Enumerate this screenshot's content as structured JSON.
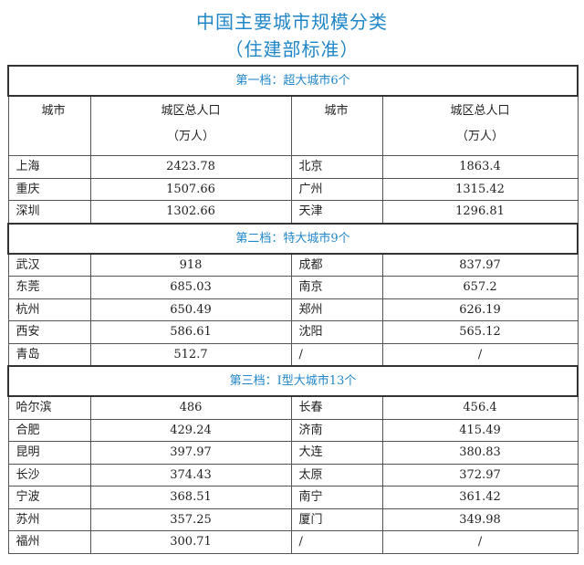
{
  "title": "中国主要城市规模分类",
  "subtitle": "（住建部标准）",
  "header": {
    "city": "城市",
    "pop": "城区总人口",
    "unit": "（万人）"
  },
  "sections": [
    {
      "heading": "第一档：超大城市6个",
      "rows": [
        [
          "上海",
          "2423.78",
          "北京",
          "1863.4"
        ],
        [
          "重庆",
          "1507.66",
          "广州",
          "1315.42"
        ],
        [
          "深圳",
          "1302.66",
          "天津",
          "1296.81"
        ]
      ]
    },
    {
      "heading": "第二档：特大城市9个",
      "rows": [
        [
          "武汉",
          "918",
          "成都",
          "837.97"
        ],
        [
          "东莞",
          "685.03",
          "南京",
          "657.2"
        ],
        [
          "杭州",
          "650.49",
          "郑州",
          "626.19"
        ],
        [
          "西安",
          "586.61",
          "沈阳",
          "565.12"
        ],
        [
          "青岛",
          "512.7",
          "/",
          "/"
        ]
      ]
    },
    {
      "heading": "第三档：Ⅰ型大城市13个",
      "rows": [
        [
          "哈尔滨",
          "486",
          "长春",
          "456.4"
        ],
        [
          "合肥",
          "429.24",
          "济南",
          "415.49"
        ],
        [
          "昆明",
          "397.97",
          "大连",
          "380.83"
        ],
        [
          "长沙",
          "374.43",
          "太原",
          "372.97"
        ],
        [
          "宁波",
          "368.51",
          "南宁",
          "361.42"
        ],
        [
          "苏州",
          "357.25",
          "厦门",
          "349.98"
        ],
        [
          "福州",
          "300.71",
          "/",
          "/"
        ]
      ]
    }
  ]
}
